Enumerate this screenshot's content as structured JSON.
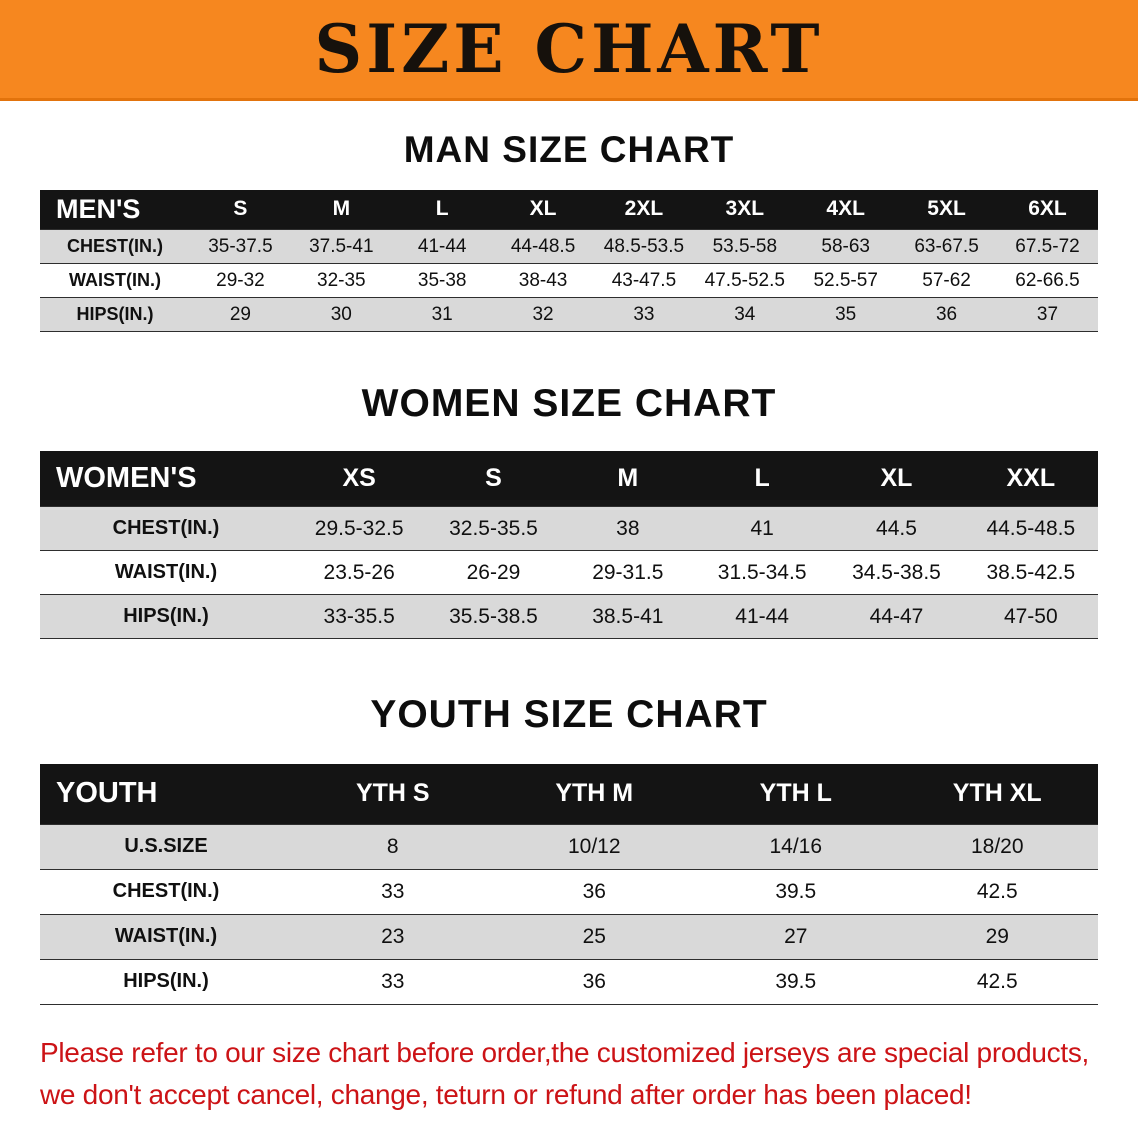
{
  "banner": {
    "title": "SIZE CHART"
  },
  "chart_data": [
    {
      "type": "table",
      "title": "MAN SIZE CHART",
      "columns": [
        "MEN'S",
        "S",
        "M",
        "L",
        "XL",
        "2XL",
        "3XL",
        "4XL",
        "5XL",
        "6XL"
      ],
      "rows": [
        [
          "CHEST(IN.)",
          "35-37.5",
          "37.5-41",
          "41-44",
          "44-48.5",
          "48.5-53.5",
          "53.5-58",
          "58-63",
          "63-67.5",
          "67.5-72"
        ],
        [
          "WAIST(IN.)",
          "29-32",
          "32-35",
          "35-38",
          "38-43",
          "43-47.5",
          "47.5-52.5",
          "52.5-57",
          "57-62",
          "62-66.5"
        ],
        [
          "HIPS(IN.)",
          "29",
          "30",
          "31",
          "32",
          "33",
          "34",
          "35",
          "36",
          "37"
        ]
      ]
    },
    {
      "type": "table",
      "title": "WOMEN SIZE CHART",
      "columns": [
        "WOMEN'S",
        "XS",
        "S",
        "M",
        "L",
        "XL",
        "XXL"
      ],
      "rows": [
        [
          "CHEST(IN.)",
          "29.5-32.5",
          "32.5-35.5",
          "38",
          "41",
          "44.5",
          "44.5-48.5"
        ],
        [
          "WAIST(IN.)",
          "23.5-26",
          "26-29",
          "29-31.5",
          "31.5-34.5",
          "34.5-38.5",
          "38.5-42.5"
        ],
        [
          "HIPS(IN.)",
          "33-35.5",
          "35.5-38.5",
          "38.5-41",
          "41-44",
          "44-47",
          "47-50"
        ]
      ]
    },
    {
      "type": "table",
      "title": "YOUTH SIZE CHART",
      "columns": [
        "YOUTH",
        "YTH S",
        "YTH M",
        "YTH L",
        "YTH XL"
      ],
      "rows": [
        [
          "U.S.SIZE",
          "8",
          "10/12",
          "14/16",
          "18/20"
        ],
        [
          "CHEST(IN.)",
          "33",
          "36",
          "39.5",
          "42.5"
        ],
        [
          "WAIST(IN.)",
          "23",
          "25",
          "27",
          "29"
        ],
        [
          "HIPS(IN.)",
          "33",
          "36",
          "39.5",
          "42.5"
        ]
      ]
    }
  ],
  "disclaimer": {
    "line1": "Please refer to our size chart before order,the customized jerseys are special products,",
    "line2": "we don't accept cancel, change, teturn or refund after order has been placed!"
  },
  "colors": {
    "banner_bg": "#f6871f",
    "table_header_bg": "#141414",
    "shaded_row_bg": "#d9d9d9",
    "disclaimer_color": "#cc1316"
  }
}
